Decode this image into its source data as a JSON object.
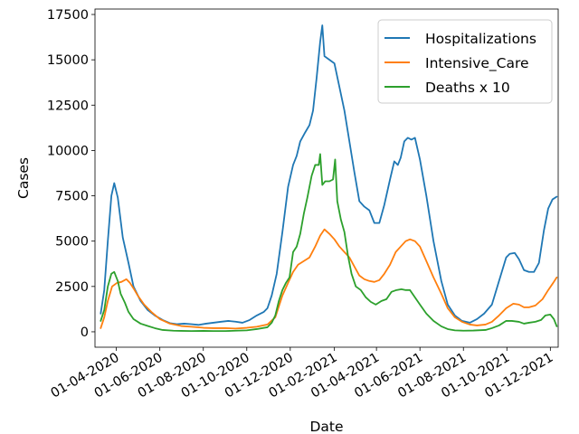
{
  "chart_data": {
    "type": "line",
    "xlabel": "Date",
    "ylabel": "Cases",
    "xlim": [
      "2020-03-02",
      "2021-12-12"
    ],
    "ylim": [
      -850,
      17800
    ],
    "grid": false,
    "legend_position": "top-right",
    "x_ticks": [
      "2020-04-01",
      "2020-06-01",
      "2020-08-01",
      "2020-10-01",
      "2020-12-01",
      "2021-02-01",
      "2021-04-01",
      "2021-06-01",
      "2021-08-01",
      "2021-10-01",
      "2021-12-01"
    ],
    "x_tick_labels": [
      "01-04-2020",
      "01-06-2020",
      "01-08-2020",
      "01-10-2020",
      "01-12-2020",
      "01-02-2021",
      "01-04-2021",
      "01-06-2021",
      "01-08-2021",
      "01-10-2021",
      "01-12-2021"
    ],
    "y_ticks": [
      0,
      2500,
      5000,
      7500,
      10000,
      12500,
      15000,
      17500
    ],
    "y_tick_labels": [
      "0",
      "2500",
      "5000",
      "7500",
      "10000",
      "12500",
      "15000",
      "17500"
    ],
    "series": [
      {
        "name": "Hospitalizations",
        "color": "#1f77b4",
        "points": [
          [
            "2020-03-10",
            1000
          ],
          [
            "2020-03-15",
            2300
          ],
          [
            "2020-03-20",
            5000
          ],
          [
            "2020-03-25",
            7500
          ],
          [
            "2020-03-29",
            8200
          ],
          [
            "2020-04-03",
            7400
          ],
          [
            "2020-04-10",
            5200
          ],
          [
            "2020-04-18",
            3800
          ],
          [
            "2020-04-25",
            2500
          ],
          [
            "2020-05-05",
            1700
          ],
          [
            "2020-05-15",
            1200
          ],
          [
            "2020-05-25",
            900
          ],
          [
            "2020-06-05",
            650
          ],
          [
            "2020-06-15",
            480
          ],
          [
            "2020-06-25",
            420
          ],
          [
            "2020-07-05",
            450
          ],
          [
            "2020-07-15",
            420
          ],
          [
            "2020-07-25",
            380
          ],
          [
            "2020-08-05",
            450
          ],
          [
            "2020-08-15",
            500
          ],
          [
            "2020-08-25",
            550
          ],
          [
            "2020-09-05",
            600
          ],
          [
            "2020-09-15",
            560
          ],
          [
            "2020-09-25",
            500
          ],
          [
            "2020-10-05",
            650
          ],
          [
            "2020-10-15",
            900
          ],
          [
            "2020-10-25",
            1100
          ],
          [
            "2020-10-30",
            1300
          ],
          [
            "2020-11-05",
            2000
          ],
          [
            "2020-11-12",
            3200
          ],
          [
            "2020-11-20",
            5500
          ],
          [
            "2020-11-28",
            8000
          ],
          [
            "2020-12-05",
            9200
          ],
          [
            "2020-12-10",
            9700
          ],
          [
            "2020-12-15",
            10500
          ],
          [
            "2020-12-22",
            11000
          ],
          [
            "2020-12-28",
            11400
          ],
          [
            "2021-01-02",
            12200
          ],
          [
            "2021-01-07",
            14000
          ],
          [
            "2021-01-12",
            16000
          ],
          [
            "2021-01-15",
            16900
          ],
          [
            "2021-01-18",
            15200
          ],
          [
            "2021-01-25",
            15000
          ],
          [
            "2021-02-01",
            14800
          ],
          [
            "2021-02-08",
            13500
          ],
          [
            "2021-02-15",
            12200
          ],
          [
            "2021-02-22",
            10500
          ],
          [
            "2021-03-01",
            8800
          ],
          [
            "2021-03-08",
            7200
          ],
          [
            "2021-03-15",
            6900
          ],
          [
            "2021-03-22",
            6700
          ],
          [
            "2021-03-29",
            6000
          ],
          [
            "2021-04-05",
            6000
          ],
          [
            "2021-04-12",
            7000
          ],
          [
            "2021-04-20",
            8400
          ],
          [
            "2021-04-26",
            9400
          ],
          [
            "2021-05-01",
            9200
          ],
          [
            "2021-05-05",
            9600
          ],
          [
            "2021-05-10",
            10500
          ],
          [
            "2021-05-15",
            10700
          ],
          [
            "2021-05-20",
            10600
          ],
          [
            "2021-05-25",
            10700
          ],
          [
            "2021-06-01",
            9500
          ],
          [
            "2021-06-10",
            7500
          ],
          [
            "2021-06-20",
            5000
          ],
          [
            "2021-07-01",
            2800
          ],
          [
            "2021-07-10",
            1500
          ],
          [
            "2021-07-20",
            900
          ],
          [
            "2021-07-30",
            600
          ],
          [
            "2021-08-10",
            500
          ],
          [
            "2021-08-20",
            700
          ],
          [
            "2021-08-30",
            1000
          ],
          [
            "2021-09-10",
            1500
          ],
          [
            "2021-09-20",
            2800
          ],
          [
            "2021-09-30",
            4100
          ],
          [
            "2021-10-05",
            4300
          ],
          [
            "2021-10-12",
            4350
          ],
          [
            "2021-10-18",
            4000
          ],
          [
            "2021-10-25",
            3400
          ],
          [
            "2021-11-01",
            3300
          ],
          [
            "2021-11-08",
            3300
          ],
          [
            "2021-11-15",
            3800
          ],
          [
            "2021-11-22",
            5600
          ],
          [
            "2021-11-28",
            6800
          ],
          [
            "2021-12-04",
            7300
          ],
          [
            "2021-12-10",
            7450
          ]
        ]
      },
      {
        "name": "Intensive_Care",
        "color": "#ff7f0e",
        "points": [
          [
            "2020-03-10",
            200
          ],
          [
            "2020-03-15",
            800
          ],
          [
            "2020-03-20",
            1700
          ],
          [
            "2020-03-26",
            2500
          ],
          [
            "2020-04-02",
            2700
          ],
          [
            "2020-04-08",
            2750
          ],
          [
            "2020-04-15",
            2900
          ],
          [
            "2020-04-20",
            2700
          ],
          [
            "2020-04-25",
            2400
          ],
          [
            "2020-05-01",
            2000
          ],
          [
            "2020-05-10",
            1500
          ],
          [
            "2020-05-20",
            1100
          ],
          [
            "2020-06-01",
            700
          ],
          [
            "2020-06-15",
            450
          ],
          [
            "2020-07-01",
            320
          ],
          [
            "2020-07-15",
            280
          ],
          [
            "2020-08-01",
            220
          ],
          [
            "2020-08-15",
            200
          ],
          [
            "2020-09-01",
            200
          ],
          [
            "2020-09-15",
            180
          ],
          [
            "2020-10-01",
            220
          ],
          [
            "2020-10-15",
            280
          ],
          [
            "2020-10-30",
            400
          ],
          [
            "2020-11-10",
            800
          ],
          [
            "2020-11-20",
            2000
          ],
          [
            "2020-11-28",
            2700
          ],
          [
            "2020-12-05",
            3300
          ],
          [
            "2020-12-12",
            3700
          ],
          [
            "2020-12-20",
            3900
          ],
          [
            "2020-12-28",
            4100
          ],
          [
            "2021-01-05",
            4700
          ],
          [
            "2021-01-12",
            5300
          ],
          [
            "2021-01-18",
            5650
          ],
          [
            "2021-01-25",
            5400
          ],
          [
            "2021-02-01",
            5100
          ],
          [
            "2021-02-08",
            4700
          ],
          [
            "2021-02-15",
            4400
          ],
          [
            "2021-02-22",
            4100
          ],
          [
            "2021-03-01",
            3600
          ],
          [
            "2021-03-08",
            3100
          ],
          [
            "2021-03-15",
            2900
          ],
          [
            "2021-03-22",
            2800
          ],
          [
            "2021-03-29",
            2750
          ],
          [
            "2021-04-05",
            2850
          ],
          [
            "2021-04-12",
            3200
          ],
          [
            "2021-04-20",
            3700
          ],
          [
            "2021-04-28",
            4400
          ],
          [
            "2021-05-05",
            4700
          ],
          [
            "2021-05-12",
            5000
          ],
          [
            "2021-05-18",
            5100
          ],
          [
            "2021-05-25",
            5000
          ],
          [
            "2021-06-01",
            4700
          ],
          [
            "2021-06-10",
            3900
          ],
          [
            "2021-06-20",
            3000
          ],
          [
            "2021-07-01",
            2100
          ],
          [
            "2021-07-10",
            1300
          ],
          [
            "2021-07-20",
            800
          ],
          [
            "2021-07-30",
            550
          ],
          [
            "2021-08-10",
            400
          ],
          [
            "2021-08-20",
            350
          ],
          [
            "2021-09-01",
            400
          ],
          [
            "2021-09-10",
            550
          ],
          [
            "2021-09-20",
            900
          ],
          [
            "2021-09-30",
            1300
          ],
          [
            "2021-10-10",
            1550
          ],
          [
            "2021-10-18",
            1500
          ],
          [
            "2021-10-25",
            1350
          ],
          [
            "2021-11-01",
            1350
          ],
          [
            "2021-11-10",
            1450
          ],
          [
            "2021-11-20",
            1800
          ],
          [
            "2021-11-28",
            2300
          ],
          [
            "2021-12-05",
            2700
          ],
          [
            "2021-12-10",
            3000
          ]
        ]
      },
      {
        "name": "Deaths x 10",
        "color": "#2ca02c",
        "points": [
          [
            "2020-03-10",
            600
          ],
          [
            "2020-03-15",
            1200
          ],
          [
            "2020-03-20",
            2500
          ],
          [
            "2020-03-25",
            3200
          ],
          [
            "2020-03-29",
            3300
          ],
          [
            "2020-04-03",
            2800
          ],
          [
            "2020-04-07",
            2100
          ],
          [
            "2020-04-13",
            1600
          ],
          [
            "2020-04-18",
            1100
          ],
          [
            "2020-04-25",
            700
          ],
          [
            "2020-05-05",
            450
          ],
          [
            "2020-05-15",
            320
          ],
          [
            "2020-05-25",
            200
          ],
          [
            "2020-06-05",
            100
          ],
          [
            "2020-06-20",
            60
          ],
          [
            "2020-07-01",
            50
          ],
          [
            "2020-07-15",
            40
          ],
          [
            "2020-08-01",
            50
          ],
          [
            "2020-08-15",
            40
          ],
          [
            "2020-09-01",
            40
          ],
          [
            "2020-09-15",
            60
          ],
          [
            "2020-10-01",
            80
          ],
          [
            "2020-10-15",
            150
          ],
          [
            "2020-10-30",
            250
          ],
          [
            "2020-11-05",
            500
          ],
          [
            "2020-11-10",
            900
          ],
          [
            "2020-11-15",
            1700
          ],
          [
            "2020-11-20",
            2300
          ],
          [
            "2020-11-25",
            2700
          ],
          [
            "2020-11-30",
            3000
          ],
          [
            "2020-12-05",
            4400
          ],
          [
            "2020-12-10",
            4700
          ],
          [
            "2020-12-15",
            5400
          ],
          [
            "2020-12-20",
            6500
          ],
          [
            "2020-12-25",
            7400
          ],
          [
            "2020-12-31",
            8600
          ],
          [
            "2021-01-05",
            9200
          ],
          [
            "2021-01-10",
            9200
          ],
          [
            "2021-01-12",
            9800
          ],
          [
            "2021-01-15",
            8100
          ],
          [
            "2021-01-19",
            8300
          ],
          [
            "2021-01-25",
            8300
          ],
          [
            "2021-01-30",
            8400
          ],
          [
            "2021-02-02",
            9500
          ],
          [
            "2021-02-05",
            7200
          ],
          [
            "2021-02-10",
            6200
          ],
          [
            "2021-02-15",
            5500
          ],
          [
            "2021-02-20",
            4200
          ],
          [
            "2021-02-25",
            3200
          ],
          [
            "2021-03-03",
            2500
          ],
          [
            "2021-03-10",
            2300
          ],
          [
            "2021-03-17",
            1900
          ],
          [
            "2021-03-24",
            1650
          ],
          [
            "2021-03-31",
            1500
          ],
          [
            "2021-04-08",
            1700
          ],
          [
            "2021-04-15",
            1800
          ],
          [
            "2021-04-22",
            2200
          ],
          [
            "2021-04-29",
            2300
          ],
          [
            "2021-05-06",
            2350
          ],
          [
            "2021-05-12",
            2300
          ],
          [
            "2021-05-18",
            2300
          ],
          [
            "2021-05-25",
            1900
          ],
          [
            "2021-06-01",
            1500
          ],
          [
            "2021-06-10",
            1000
          ],
          [
            "2021-06-20",
            600
          ],
          [
            "2021-07-01",
            300
          ],
          [
            "2021-07-10",
            150
          ],
          [
            "2021-07-20",
            80
          ],
          [
            "2021-08-01",
            60
          ],
          [
            "2021-08-15",
            70
          ],
          [
            "2021-09-01",
            100
          ],
          [
            "2021-09-10",
            200
          ],
          [
            "2021-09-20",
            350
          ],
          [
            "2021-09-30",
            600
          ],
          [
            "2021-10-08",
            600
          ],
          [
            "2021-10-18",
            550
          ],
          [
            "2021-10-25",
            450
          ],
          [
            "2021-11-01",
            500
          ],
          [
            "2021-11-10",
            550
          ],
          [
            "2021-11-18",
            650
          ],
          [
            "2021-11-24",
            900
          ],
          [
            "2021-12-01",
            950
          ],
          [
            "2021-12-06",
            700
          ],
          [
            "2021-12-10",
            300
          ]
        ]
      }
    ]
  }
}
